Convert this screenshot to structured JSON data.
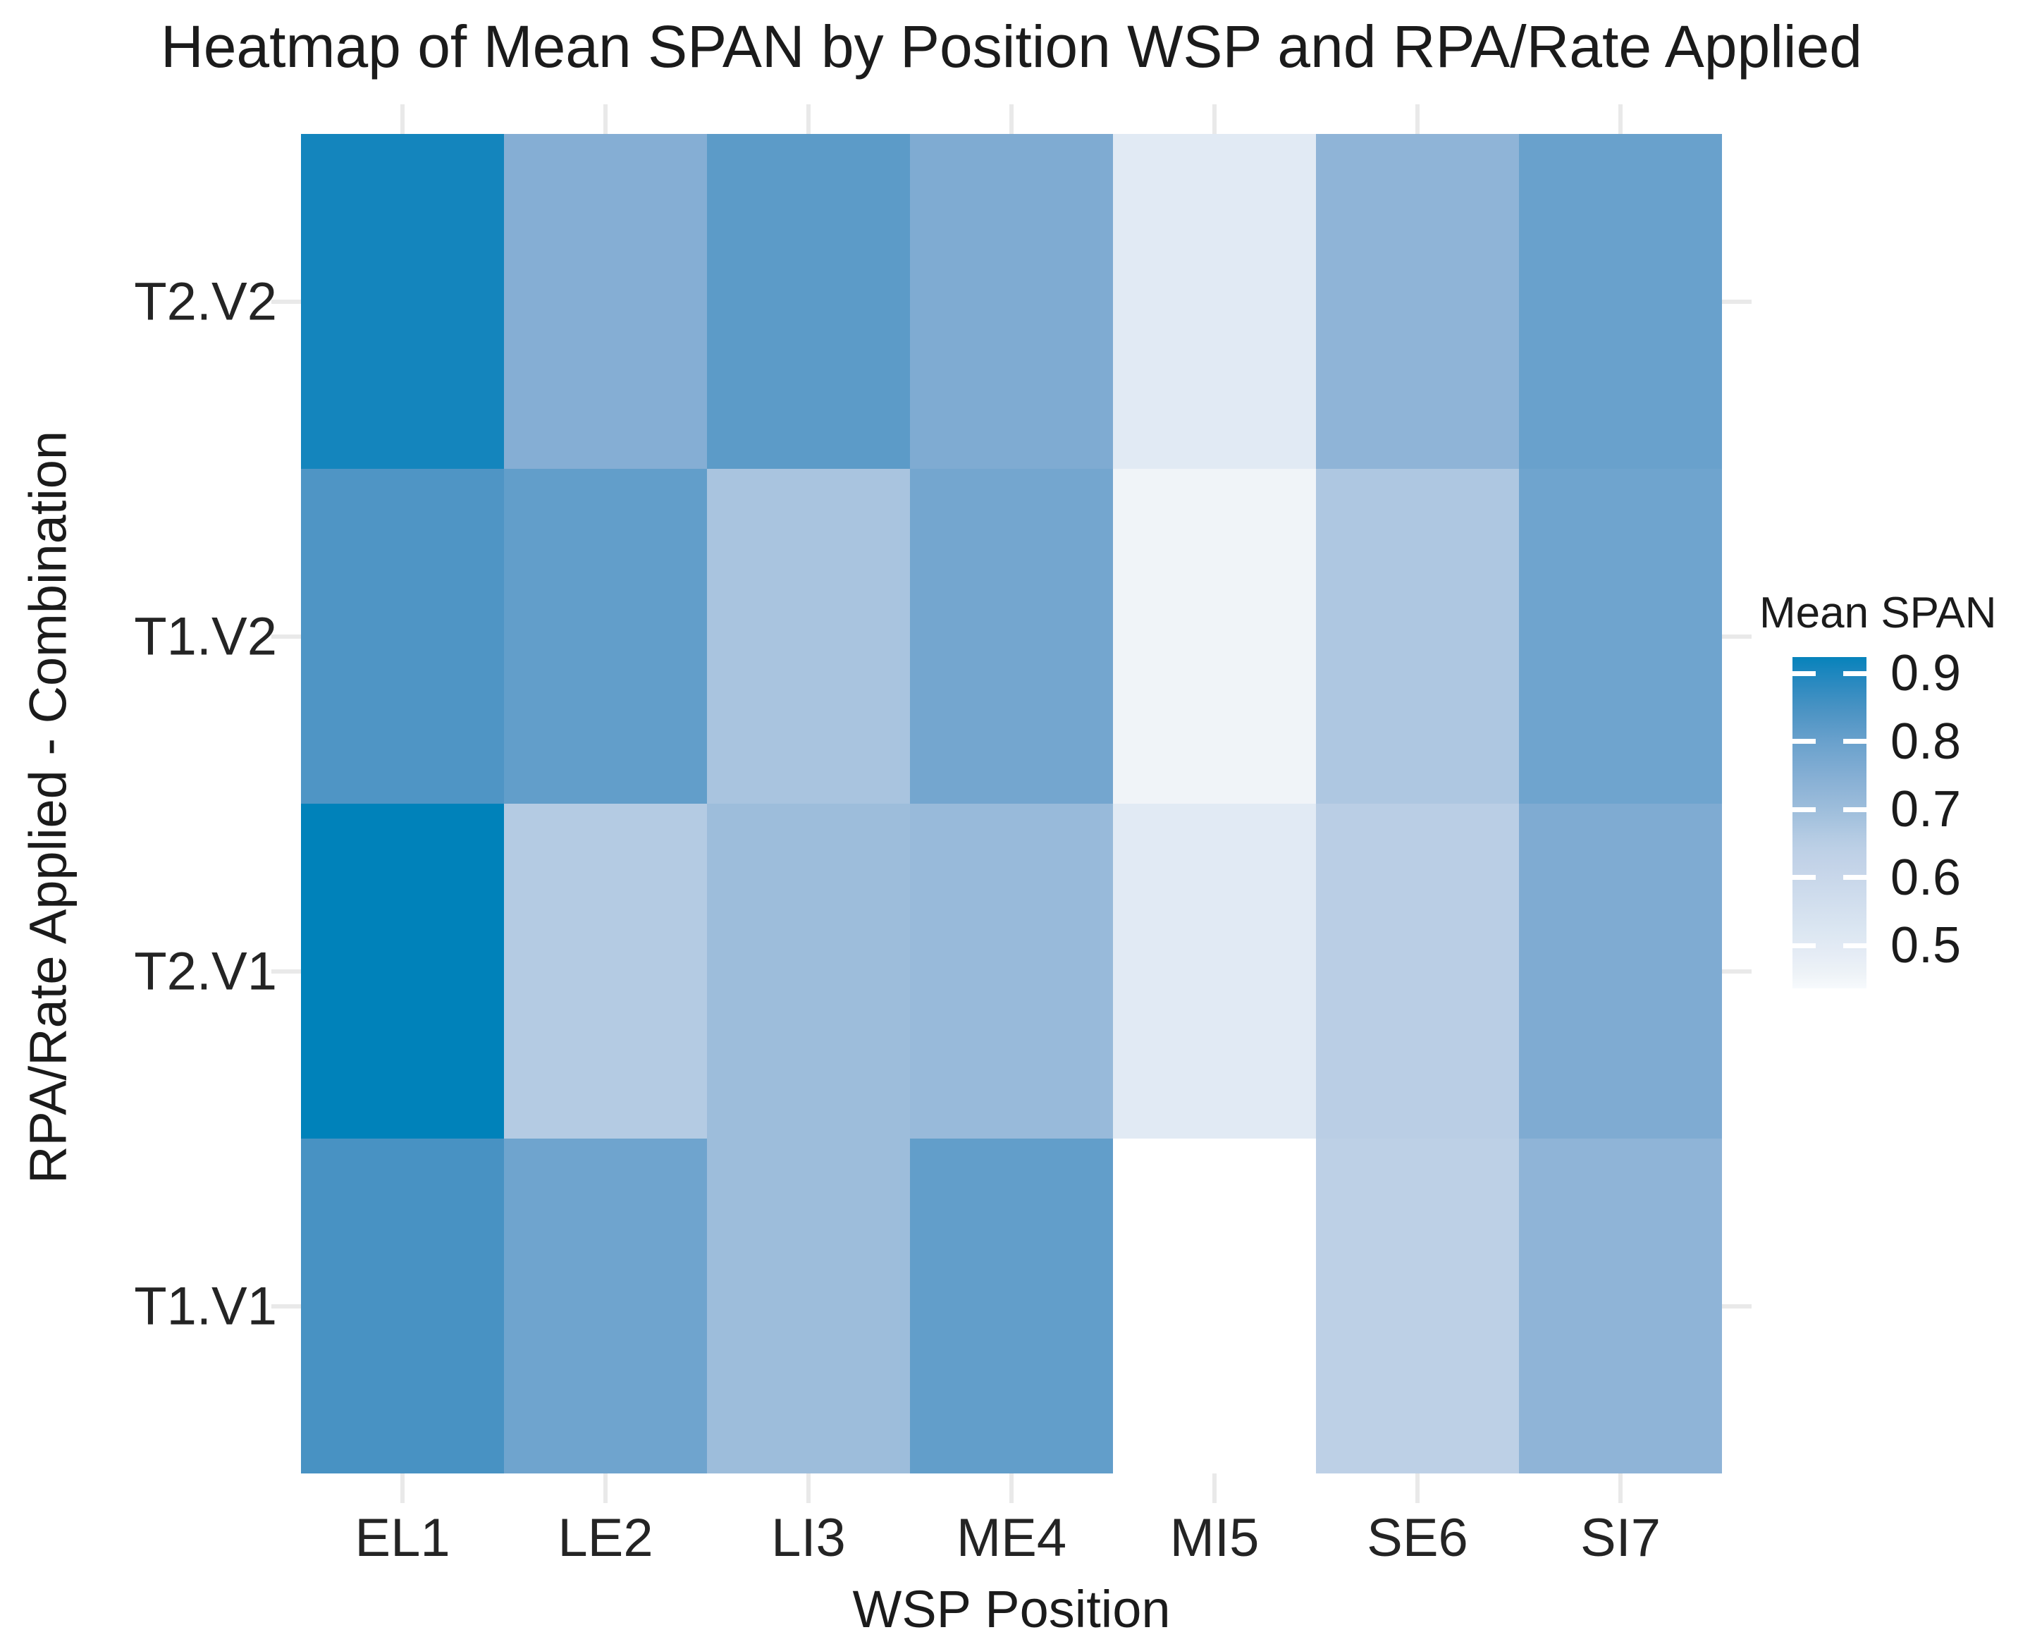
{
  "title": "Heatmap of Mean SPAN by Position WSP and RPA/Rate Applied",
  "chart_data": {
    "type": "heatmap",
    "title": "Heatmap of Mean SPAN by Position WSP and RPA/Rate Applied",
    "xlabel": "WSP Position",
    "ylabel": "RPA/Rate Applied - Combination",
    "x_categories": [
      "EL1",
      "LE2",
      "LI3",
      "ME4",
      "MI5",
      "SE6",
      "SI7"
    ],
    "y_categories": [
      "T2.V2",
      "T1.V2",
      "T2.V1",
      "T1.V1"
    ],
    "values": [
      [
        0.91,
        0.75,
        0.82,
        0.76,
        0.5,
        0.73,
        0.8
      ],
      [
        0.84,
        0.81,
        0.68,
        0.78,
        0.45,
        0.67,
        0.79
      ],
      [
        0.93,
        0.66,
        0.7,
        0.71,
        0.5,
        0.65,
        0.76
      ],
      [
        0.85,
        0.79,
        0.7,
        0.81,
        null,
        0.64,
        0.73
      ]
    ],
    "missing_cells": [
      {
        "row": "T1.V1",
        "col": "MI5"
      }
    ],
    "legend": {
      "title": "Mean SPAN",
      "tick_values": [
        0.9,
        0.8,
        0.7,
        0.6,
        0.5
      ],
      "bar_value_top": 0.924,
      "bar_value_bottom": 0.437
    },
    "grid": "light tick stubs outside panel on all four sides",
    "colors": {
      "background": "#ffffff",
      "text": "#1b1b1b",
      "tick_stub": "#e9e9e9",
      "scale_high": "#0082ba",
      "scale_low": "#f7fafd",
      "colormap_stops": [
        [
          0.44,
          "#f7fafd"
        ],
        [
          0.45,
          "#f0f4f8"
        ],
        [
          0.5,
          "#e1eaf4"
        ],
        [
          0.55,
          "#d4e1ef"
        ],
        [
          0.6,
          "#c8d7ea"
        ],
        [
          0.65,
          "#bacee5"
        ],
        [
          0.7,
          "#9dbddb"
        ],
        [
          0.75,
          "#85aed4"
        ],
        [
          0.8,
          "#69a1cc"
        ],
        [
          0.85,
          "#4892c3"
        ],
        [
          0.9,
          "#1e86be"
        ],
        [
          0.93,
          "#0082ba"
        ]
      ]
    }
  }
}
